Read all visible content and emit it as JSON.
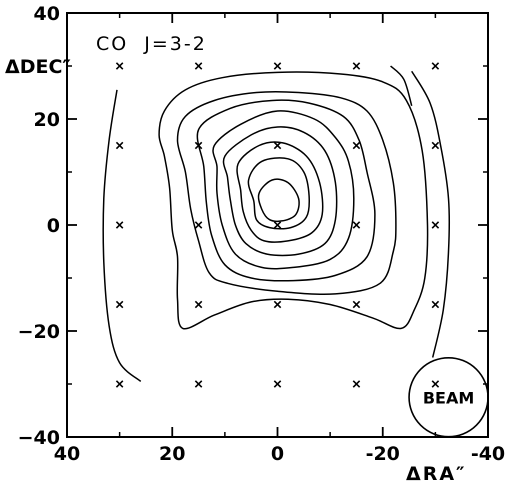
{
  "chart_data": {
    "type": "contour",
    "title": "CO  J=3-2",
    "xlabel": "ΔRA″",
    "ylabel": "ΔDEC″",
    "xlim": [
      40,
      -40
    ],
    "ylim": [
      -40,
      40
    ],
    "x_ticks": [
      40,
      20,
      0,
      -20,
      -40
    ],
    "x_tick_labels": [
      "40",
      "20",
      "0",
      "-20",
      "-40"
    ],
    "y_ticks": [
      40,
      20,
      0,
      -20,
      -40
    ],
    "y_tick_labels": [
      "40",
      "20",
      "0",
      "−20",
      "−40"
    ],
    "minor_tick_step": 10,
    "grid": false,
    "sample_points": [
      [
        30,
        30
      ],
      [
        15,
        30
      ],
      [
        0,
        30
      ],
      [
        -15,
        30
      ],
      [
        -30,
        30
      ],
      [
        30,
        15
      ],
      [
        15,
        15
      ],
      [
        0,
        15
      ],
      [
        -15,
        15
      ],
      [
        -30,
        15
      ],
      [
        30,
        0
      ],
      [
        15,
        0
      ],
      [
        0,
        0
      ],
      [
        -15,
        0
      ],
      [
        -30,
        0
      ],
      [
        30,
        -15
      ],
      [
        15,
        -15
      ],
      [
        0,
        -15
      ],
      [
        -15,
        -15
      ],
      [
        -30,
        -15
      ],
      [
        30,
        -30
      ],
      [
        15,
        -30
      ],
      [
        0,
        -30
      ],
      [
        -15,
        -30
      ],
      [
        -30,
        -30
      ]
    ],
    "contours": [
      {
        "closed": false,
        "points": [
          [
            30.5,
            25.5
          ],
          [
            32,
            16
          ],
          [
            33,
            5
          ],
          [
            33,
            -7
          ],
          [
            32,
            -19
          ],
          [
            30,
            -26
          ],
          [
            26,
            -29.5
          ]
        ]
      },
      {
        "closed": false,
        "points": [
          [
            -25.5,
            29
          ],
          [
            -29,
            23
          ],
          [
            -31,
            15
          ],
          [
            -32.5,
            5
          ],
          [
            -32.5,
            -5
          ],
          [
            -31.5,
            -16
          ],
          [
            -29.5,
            -25
          ]
        ]
      },
      {
        "closed": false,
        "points": [
          [
            -21.5,
            30
          ],
          [
            -24,
            27.5
          ],
          [
            -25.5,
            22.5
          ]
        ]
      },
      {
        "closed": true,
        "points": [
          [
            22.5,
            17
          ],
          [
            21.5,
            21.5
          ],
          [
            17.5,
            25.5
          ],
          [
            10.5,
            27.8
          ],
          [
            0,
            28.8
          ],
          [
            -12,
            28.5
          ],
          [
            -20,
            27
          ],
          [
            -24.5,
            23.5
          ],
          [
            -27.5,
            14
          ],
          [
            -28.5,
            0
          ],
          [
            -28,
            -10
          ],
          [
            -26,
            -16
          ],
          [
            -23.5,
            -19.5
          ],
          [
            -18,
            -17.5
          ],
          [
            -10,
            -15
          ],
          [
            -2,
            -14
          ],
          [
            5,
            -14.5
          ],
          [
            12,
            -17
          ],
          [
            18,
            -19.5
          ],
          [
            19,
            -14
          ],
          [
            19,
            -6
          ],
          [
            20,
            -1
          ],
          [
            20.5,
            7
          ],
          [
            21.5,
            13
          ]
        ]
      },
      {
        "closed": true,
        "points": [
          [
            19,
            16
          ],
          [
            17.5,
            20.5
          ],
          [
            12,
            23.5
          ],
          [
            4,
            25
          ],
          [
            -4,
            25
          ],
          [
            -12,
            24
          ],
          [
            -17,
            21.5
          ],
          [
            -20,
            16
          ],
          [
            -22,
            8
          ],
          [
            -22.5,
            0
          ],
          [
            -22,
            -5
          ],
          [
            -19.5,
            -11
          ],
          [
            -11,
            -13
          ],
          [
            0,
            -12.5
          ],
          [
            9.5,
            -11
          ],
          [
            13,
            -9
          ],
          [
            15,
            -3
          ],
          [
            16.5,
            3
          ],
          [
            17.5,
            10
          ]
        ]
      },
      {
        "closed": true,
        "points": [
          [
            15,
            18
          ],
          [
            9,
            22
          ],
          [
            1,
            23.5
          ],
          [
            -6,
            23
          ],
          [
            -12.5,
            20.5
          ],
          [
            -15.5,
            16
          ],
          [
            -17,
            10
          ],
          [
            -18.5,
            2
          ],
          [
            -17,
            -6
          ],
          [
            -11,
            -9.5
          ],
          [
            -3,
            -10.5
          ],
          [
            5,
            -10
          ],
          [
            10,
            -7.5
          ],
          [
            12.5,
            -2
          ],
          [
            13.5,
            4
          ],
          [
            14,
            11
          ]
        ]
      },
      {
        "closed": true,
        "points": [
          [
            12,
            15
          ],
          [
            7,
            19
          ],
          [
            0,
            21.5
          ],
          [
            -7,
            20
          ],
          [
            -11,
            16.5
          ],
          [
            -13.5,
            12
          ],
          [
            -14.5,
            5
          ],
          [
            -13.5,
            -2.5
          ],
          [
            -10,
            -6.5
          ],
          [
            -3,
            -8
          ],
          [
            3,
            -8
          ],
          [
            8,
            -5.5
          ],
          [
            10.5,
            0
          ],
          [
            11.5,
            6
          ],
          [
            11.5,
            11
          ]
        ]
      },
      {
        "closed": true,
        "points": [
          [
            10,
            13
          ],
          [
            5,
            17
          ],
          [
            0,
            18.5
          ],
          [
            -5,
            17.5
          ],
          [
            -9,
            14
          ],
          [
            -11,
            8
          ],
          [
            -11,
            1
          ],
          [
            -9,
            -3.5
          ],
          [
            -4,
            -5.5
          ],
          [
            2,
            -5.5
          ],
          [
            6,
            -3.5
          ],
          [
            8,
            0
          ],
          [
            9,
            5
          ],
          [
            9.5,
            9
          ]
        ]
      },
      {
        "closed": true,
        "points": [
          [
            7.5,
            11.5
          ],
          [
            3.5,
            15
          ],
          [
            -1,
            15.5
          ],
          [
            -5.5,
            13
          ],
          [
            -8,
            8
          ],
          [
            -8.5,
            2
          ],
          [
            -6.5,
            -1.5
          ],
          [
            -2,
            -3
          ],
          [
            2.5,
            -3
          ],
          [
            5,
            -1
          ],
          [
            6.5,
            2.5
          ],
          [
            7,
            6.5
          ]
        ]
      },
      {
        "closed": true,
        "points": [
          [
            5.5,
            8.5
          ],
          [
            3,
            12
          ],
          [
            -2,
            12.5
          ],
          [
            -5,
            10
          ],
          [
            -6,
            5.5
          ],
          [
            -5.5,
            1.5
          ],
          [
            -2.5,
            -0.5
          ],
          [
            1.5,
            -0.5
          ],
          [
            4,
            1
          ],
          [
            4.5,
            4.5
          ]
        ]
      },
      {
        "closed": true,
        "points": [
          [
            3.5,
            6
          ],
          [
            1,
            8.5
          ],
          [
            -2,
            8
          ],
          [
            -4,
            5
          ],
          [
            -3.5,
            2
          ],
          [
            -1,
            0.8
          ],
          [
            1.5,
            1
          ],
          [
            3,
            3
          ]
        ]
      }
    ],
    "beam": {
      "label": "BEAM",
      "center": [
        -32.5,
        -32.5
      ],
      "radius": 7.5
    }
  }
}
